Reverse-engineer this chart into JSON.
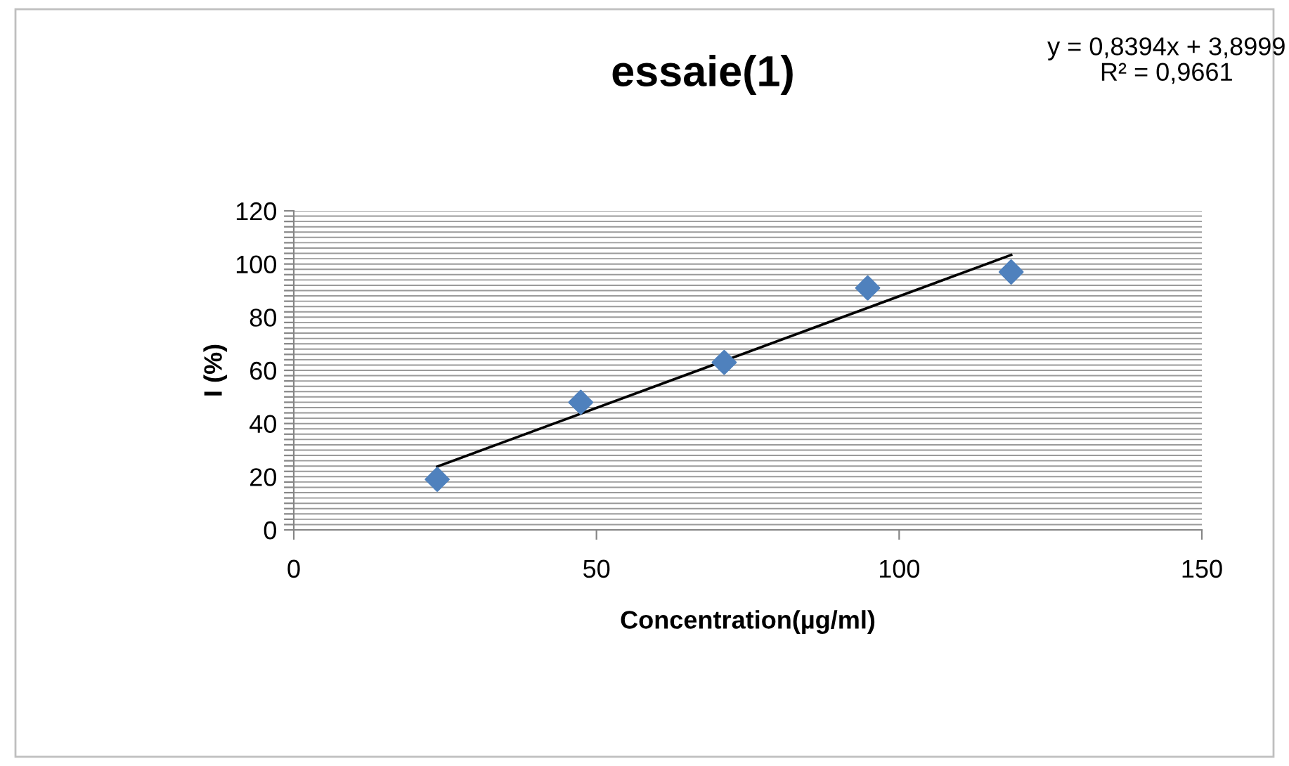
{
  "chart_data": {
    "type": "scatter",
    "title": "essaie(1)",
    "xlabel": "Concentration(µg/ml)",
    "ylabel": "I (%)",
    "series": [
      {
        "color": "#4f81bd",
        "x": [
          23.7,
          47.4,
          71.1,
          94.8,
          118.5
        ],
        "values": [
          19,
          48,
          63,
          91,
          97
        ],
        "marker": "diamond"
      },
      {
        "type": "line",
        "color": "#000000",
        "x": [
          23.7,
          118.5
        ],
        "values": [
          23.8,
          103.4
        ],
        "marker": "none",
        "line_style": "solid"
      }
    ],
    "annotations": [
      "y = 0,8394x + 3,8999\nR² = 0,9661"
    ],
    "xlim": [
      0,
      150
    ],
    "xticks": [
      0,
      50,
      100,
      150
    ],
    "ylim": [
      0,
      120
    ],
    "yticks": [
      0,
      {
        "value": 2,
        "label": null
      },
      {
        "value": 4,
        "label": null
      },
      {
        "value": 6,
        "label": null
      },
      {
        "value": 8,
        "label": null
      },
      {
        "value": 10,
        "label": null
      },
      {
        "value": 12,
        "label": null
      },
      {
        "value": 14,
        "label": null
      },
      {
        "value": 16,
        "label": null
      },
      {
        "value": 18,
        "label": null
      },
      20,
      {
        "value": 22,
        "label": null
      },
      {
        "value": 24,
        "label": null
      },
      {
        "value": 26,
        "label": null
      },
      {
        "value": 28,
        "label": null
      },
      {
        "value": 30,
        "label": null
      },
      {
        "value": 32,
        "label": null
      },
      {
        "value": 34,
        "label": null
      },
      {
        "value": 36,
        "label": null
      },
      {
        "value": 38,
        "label": null
      },
      40,
      {
        "value": 42,
        "label": null
      },
      {
        "value": 44,
        "label": null
      },
      {
        "value": 46,
        "label": null
      },
      {
        "value": 48,
        "label": null
      },
      {
        "value": 50,
        "label": null
      },
      {
        "value": 52,
        "label": null
      },
      {
        "value": 54,
        "label": null
      },
      {
        "value": 56,
        "label": null
      },
      {
        "value": 58,
        "label": null
      },
      60,
      {
        "value": 62,
        "label": null
      },
      {
        "value": 64,
        "label": null
      },
      {
        "value": 66,
        "label": null
      },
      {
        "value": 68,
        "label": null
      },
      {
        "value": 70,
        "label": null
      },
      {
        "value": 72,
        "label": null
      },
      {
        "value": 74,
        "label": null
      },
      {
        "value": 76,
        "label": null
      },
      {
        "value": 78,
        "label": null
      },
      80,
      {
        "value": 82,
        "label": null
      },
      {
        "value": 84,
        "label": null
      },
      {
        "value": 86,
        "label": null
      },
      {
        "value": 88,
        "label": null
      },
      {
        "value": 90,
        "label": null
      },
      {
        "value": 92,
        "label": null
      },
      {
        "value": 94,
        "label": null
      },
      {
        "value": 96,
        "label": null
      },
      {
        "value": 98,
        "label": null
      },
      100,
      {
        "value": 102,
        "label": null
      },
      {
        "value": 104,
        "label": null
      },
      {
        "value": 106,
        "label": null
      },
      {
        "value": 108,
        "label": null
      },
      {
        "value": 110,
        "label": null
      },
      {
        "value": 112,
        "label": null
      },
      {
        "value": 114,
        "label": null
      },
      {
        "value": 116,
        "label": null
      },
      {
        "value": 118,
        "label": null
      },
      120
    ],
    "grid": "y"
  }
}
